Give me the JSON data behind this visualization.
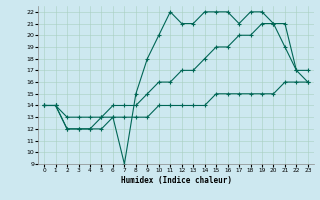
{
  "xlabel": "Humidex (Indice chaleur)",
  "bg_color": "#cde8f0",
  "grid_color": "#a8cfc0",
  "line_color": "#006655",
  "xlim": [
    -0.5,
    23.5
  ],
  "ylim": [
    9,
    22.5
  ],
  "xticks": [
    0,
    1,
    2,
    3,
    4,
    5,
    6,
    7,
    8,
    9,
    10,
    11,
    12,
    13,
    14,
    15,
    16,
    17,
    18,
    19,
    20,
    21,
    22,
    23
  ],
  "yticks": [
    9,
    10,
    11,
    12,
    13,
    14,
    15,
    16,
    17,
    18,
    19,
    20,
    21,
    22
  ],
  "line1_x": [
    0,
    1,
    2,
    3,
    4,
    5,
    6,
    7,
    8,
    9,
    10,
    11,
    12,
    13,
    14,
    15,
    16,
    17,
    18,
    19,
    20,
    21,
    22,
    23
  ],
  "line1_y": [
    14,
    14,
    12,
    12,
    12,
    12,
    13,
    9,
    15,
    18,
    20,
    22,
    21,
    21,
    22,
    22,
    22,
    21,
    22,
    22,
    21,
    19,
    17,
    16
  ],
  "line2_x": [
    0,
    1,
    2,
    3,
    4,
    5,
    6,
    7,
    8,
    9,
    10,
    11,
    12,
    13,
    14,
    15,
    16,
    17,
    18,
    19,
    20,
    21,
    22,
    23
  ],
  "line2_y": [
    14,
    14,
    13,
    13,
    13,
    13,
    14,
    14,
    14,
    15,
    16,
    16,
    17,
    17,
    18,
    19,
    19,
    20,
    20,
    21,
    21,
    21,
    17,
    17
  ],
  "line3_x": [
    0,
    1,
    2,
    3,
    4,
    5,
    6,
    7,
    8,
    9,
    10,
    11,
    12,
    13,
    14,
    15,
    16,
    17,
    18,
    19,
    20,
    21,
    22,
    23
  ],
  "line3_y": [
    14,
    14,
    12,
    12,
    12,
    13,
    13,
    13,
    13,
    13,
    14,
    14,
    14,
    14,
    14,
    15,
    15,
    15,
    15,
    15,
    15,
    16,
    16,
    16
  ]
}
